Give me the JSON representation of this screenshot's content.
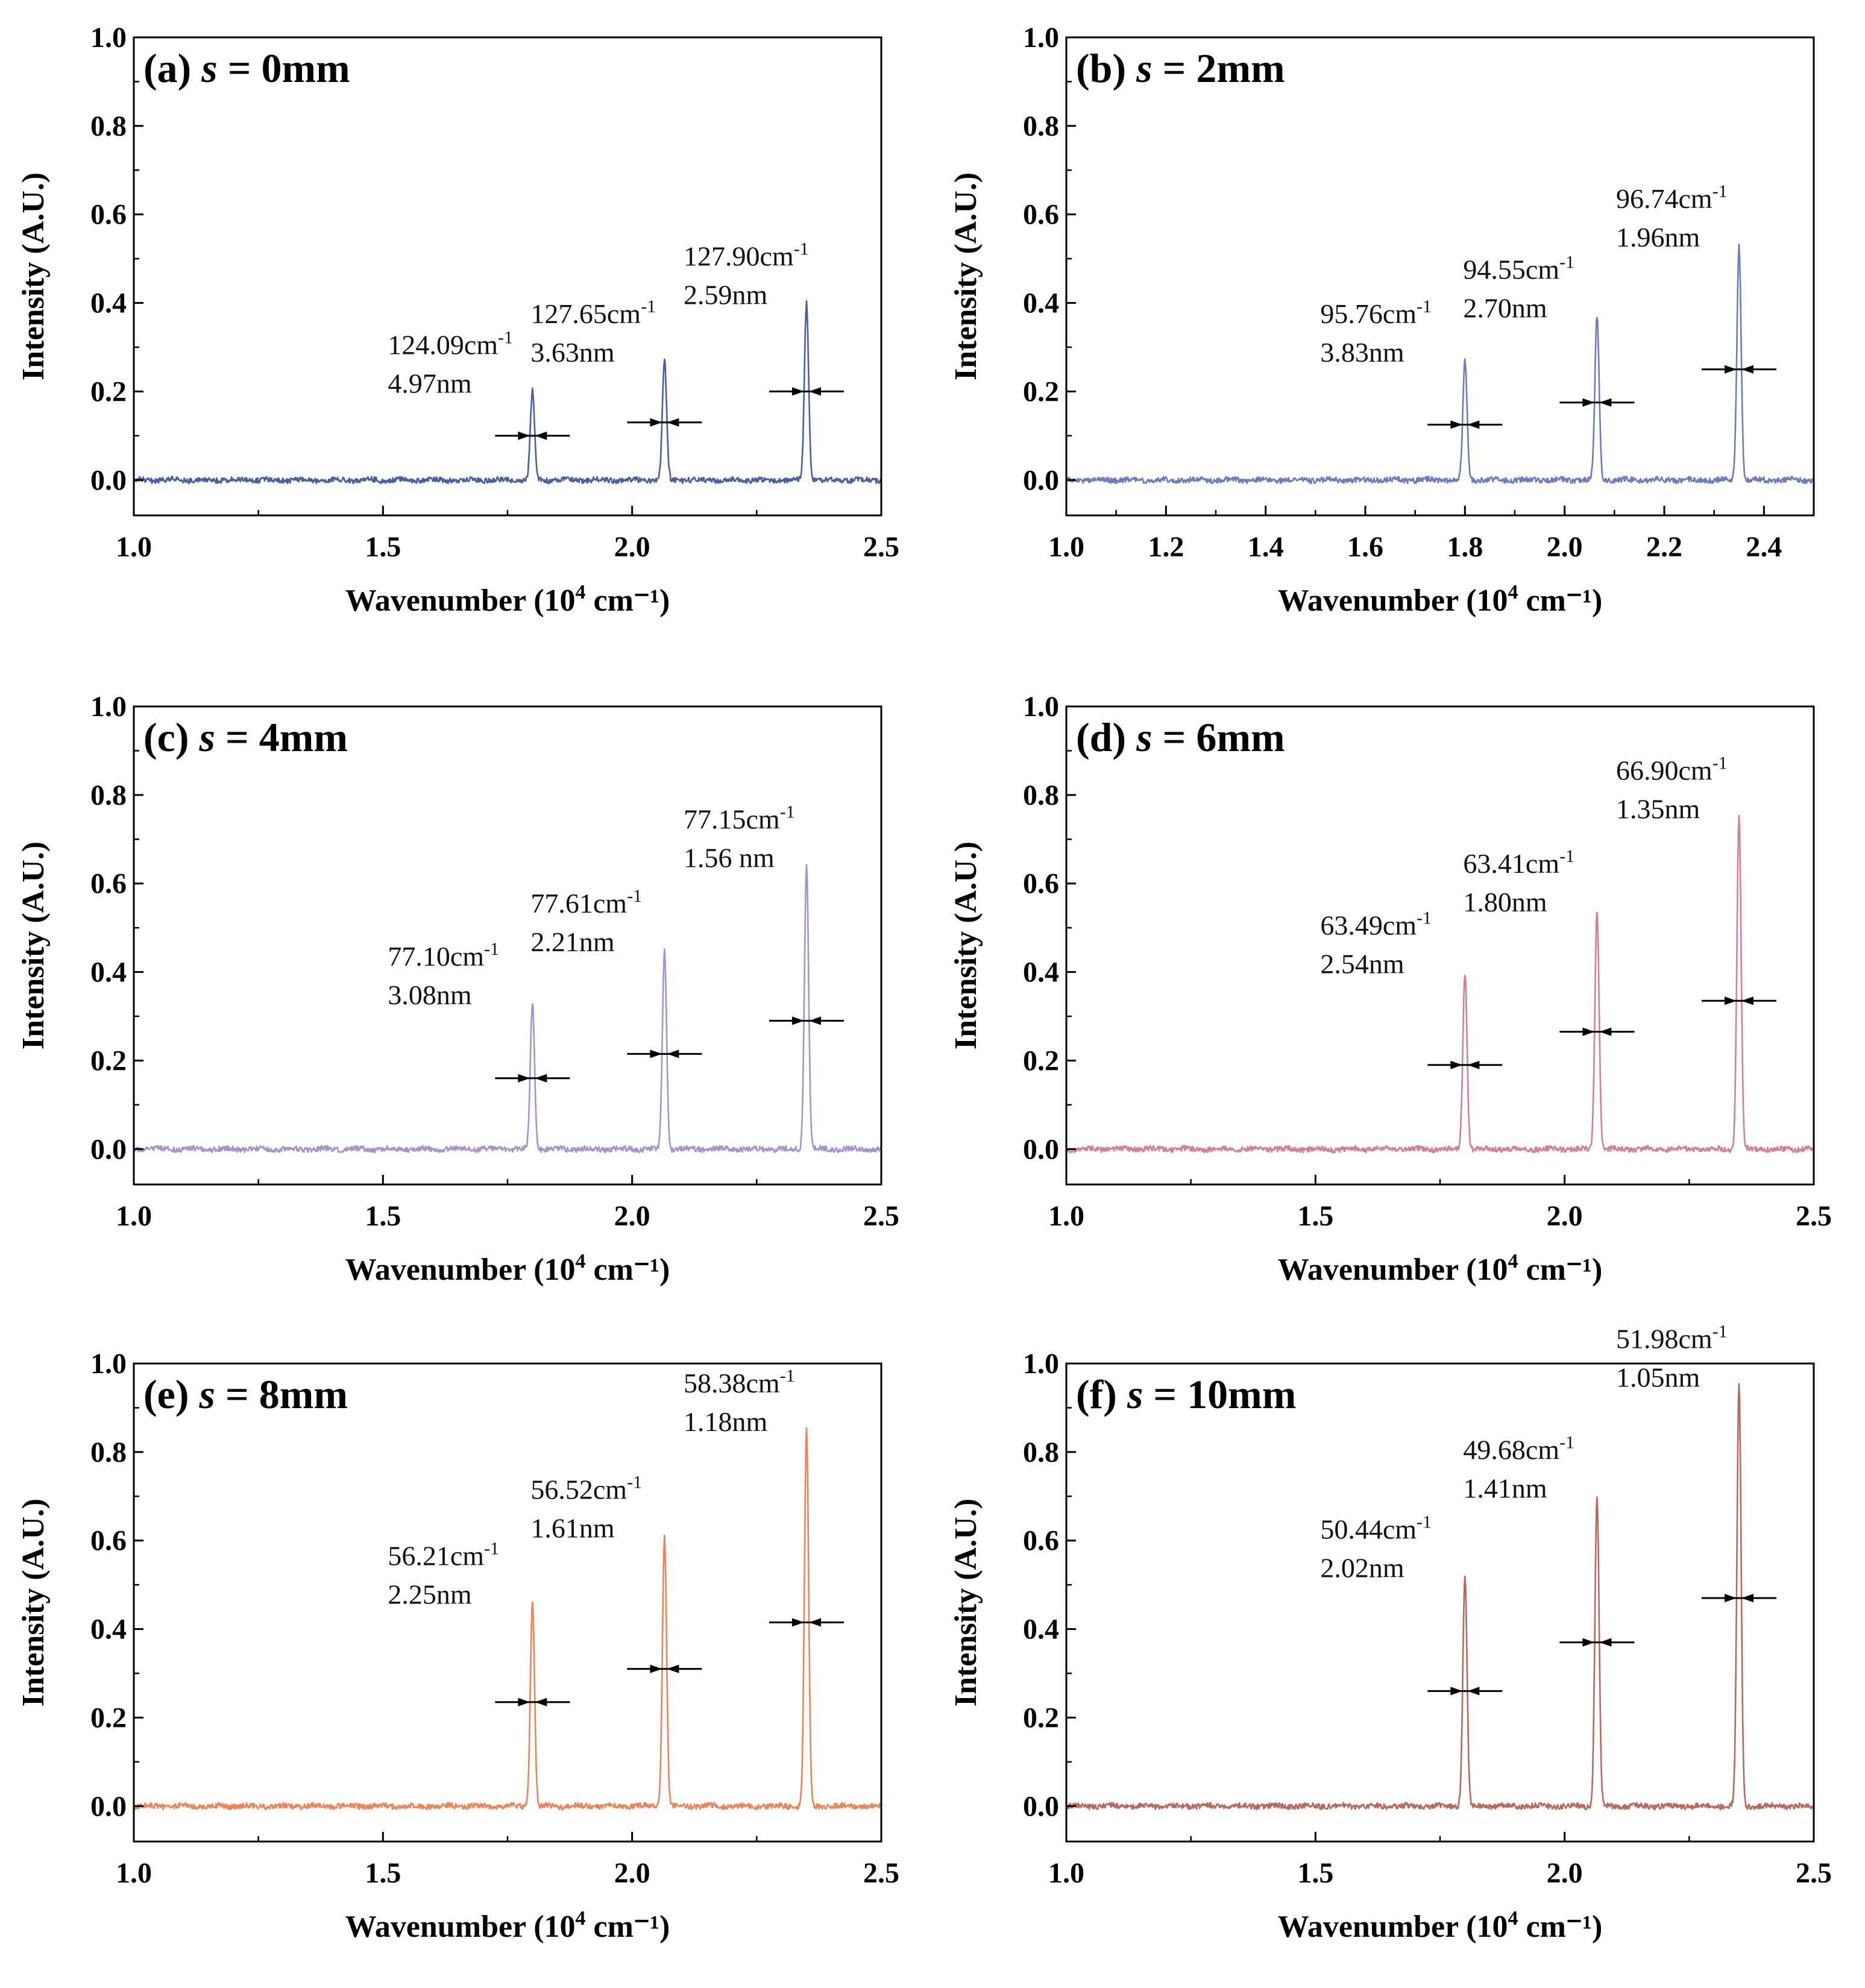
{
  "figure": {
    "shared_axes": {
      "xlabel": "Wavenumber",
      "xunit_open": "(10",
      "xunit_exp": "4",
      "xunit_close": " cm⁻¹)",
      "ylabel": "Intensity (A.U.)",
      "ylim": [
        -0.08,
        1.0
      ],
      "yticks": [
        "0.0",
        "0.2",
        "0.4",
        "0.6",
        "0.8",
        "1.0"
      ],
      "peak_positions": [
        1.8,
        2.065,
        2.35
      ]
    }
  },
  "chart_data": [
    {
      "type": "line",
      "label": "(a)",
      "s_symbol": "s",
      "s_value": " = 0mm",
      "color": "#4a5ea8",
      "xlim": [
        1.0,
        2.5
      ],
      "xticks": [
        "1.0",
        "1.5",
        "2.0",
        "2.5"
      ],
      "xtick_values": [
        1.0,
        1.5,
        2.0,
        2.5
      ],
      "peaks": [
        {
          "x": 1.8,
          "height": 0.2,
          "wn": "124.09cm",
          "wn_sup": "-1",
          "fwhm": "4.97nm",
          "arrow_y": 0.1
        },
        {
          "x": 2.065,
          "height": 0.27,
          "wn": "127.65cm",
          "wn_sup": "-1",
          "fwhm": "3.63nm",
          "arrow_y": 0.13
        },
        {
          "x": 2.35,
          "height": 0.4,
          "wn": "127.90cm",
          "wn_sup": "-1",
          "fwhm": "2.59nm",
          "arrow_y": 0.2
        }
      ]
    },
    {
      "type": "line",
      "label": "(b)",
      "s_symbol": "s",
      "s_value": " = 2mm",
      "color": "#6c7bc2",
      "xlim": [
        1.0,
        2.5
      ],
      "xticks": [
        "1.0",
        "1.2",
        "1.4",
        "1.6",
        "1.8",
        "2.0",
        "2.2",
        "2.4"
      ],
      "xtick_values": [
        1.0,
        1.2,
        1.4,
        1.6,
        1.8,
        2.0,
        2.2,
        2.4
      ],
      "peaks": [
        {
          "x": 1.8,
          "height": 0.27,
          "wn": "95.76cm",
          "wn_sup": "-1",
          "fwhm": "3.83nm",
          "arrow_y": 0.125
        },
        {
          "x": 2.065,
          "height": 0.37,
          "wn": "94.55cm",
          "wn_sup": "-1",
          "fwhm": "2.70nm",
          "arrow_y": 0.175
        },
        {
          "x": 2.35,
          "height": 0.53,
          "wn": "96.74cm",
          "wn_sup": "-1",
          "fwhm": "1.96nm",
          "arrow_y": 0.25
        }
      ]
    },
    {
      "type": "line",
      "label": "(c)",
      "s_symbol": "s",
      "s_value": " = 4mm",
      "color": "#a592d0",
      "xlim": [
        1.0,
        2.5
      ],
      "xticks": [
        "1.0",
        "1.5",
        "2.0",
        "2.5"
      ],
      "xtick_values": [
        1.0,
        1.5,
        2.0,
        2.5
      ],
      "peaks": [
        {
          "x": 1.8,
          "height": 0.33,
          "wn": "77.10cm",
          "wn_sup": "-1",
          "fwhm": "3.08nm",
          "arrow_y": 0.16
        },
        {
          "x": 2.065,
          "height": 0.45,
          "wn": "77.61cm",
          "wn_sup": "-1",
          "fwhm": "2.21nm",
          "arrow_y": 0.215
        },
        {
          "x": 2.35,
          "height": 0.64,
          "wn": "77.15cm",
          "wn_sup": "-1",
          "fwhm": "1.56 nm",
          "arrow_y": 0.29
        }
      ]
    },
    {
      "type": "line",
      "label": "(d)",
      "s_symbol": "s",
      "s_value": " = 6mm",
      "color": "#d27f97",
      "xlim": [
        1.0,
        2.5
      ],
      "xticks": [
        "1.0",
        "1.5",
        "2.0",
        "2.5"
      ],
      "xtick_values": [
        1.0,
        1.5,
        2.0,
        2.5
      ],
      "peaks": [
        {
          "x": 1.8,
          "height": 0.4,
          "wn": "63.49cm",
          "wn_sup": "-1",
          "fwhm": "2.54nm",
          "arrow_y": 0.19
        },
        {
          "x": 2.065,
          "height": 0.54,
          "wn": "63.41cm",
          "wn_sup": "-1",
          "fwhm": "1.80nm",
          "arrow_y": 0.265
        },
        {
          "x": 2.35,
          "height": 0.75,
          "wn": "66.90cm",
          "wn_sup": "-1",
          "fwhm": "1.35nm",
          "arrow_y": 0.335
        }
      ]
    },
    {
      "type": "line",
      "label": "(e)",
      "s_symbol": "s",
      "s_value": " = 8mm",
      "color": "#ee8356",
      "xlim": [
        1.0,
        2.5
      ],
      "xticks": [
        "1.0",
        "1.5",
        "2.0",
        "2.5"
      ],
      "xtick_values": [
        1.0,
        1.5,
        2.0,
        2.5
      ],
      "peaks": [
        {
          "x": 1.8,
          "height": 0.46,
          "wn": "56.21cm",
          "wn_sup": "-1",
          "fwhm": "2.25nm",
          "arrow_y": 0.235
        },
        {
          "x": 2.065,
          "height": 0.61,
          "wn": "56.52cm",
          "wn_sup": "-1",
          "fwhm": "1.61nm",
          "arrow_y": 0.31
        },
        {
          "x": 2.35,
          "height": 0.85,
          "wn": "58.38cm",
          "wn_sup": "-1",
          "fwhm": "1.18nm",
          "arrow_y": 0.415
        }
      ]
    },
    {
      "type": "line",
      "label": "(f)",
      "s_symbol": "s",
      "s_value": " = 10mm",
      "color": "#b9685c",
      "xlim": [
        1.0,
        2.5
      ],
      "xticks": [
        "1.0",
        "1.5",
        "2.0",
        "2.5"
      ],
      "xtick_values": [
        1.0,
        1.5,
        2.0,
        2.5
      ],
      "peaks": [
        {
          "x": 1.8,
          "height": 0.52,
          "wn": "50.44cm",
          "wn_sup": "-1",
          "fwhm": "2.02nm",
          "arrow_y": 0.26
        },
        {
          "x": 2.065,
          "height": 0.7,
          "wn": "49.68cm",
          "wn_sup": "-1",
          "fwhm": "1.41nm",
          "arrow_y": 0.37
        },
        {
          "x": 2.35,
          "height": 0.95,
          "wn": "51.98cm",
          "wn_sup": "-1",
          "fwhm": "1.05nm",
          "arrow_y": 0.47
        }
      ]
    }
  ]
}
